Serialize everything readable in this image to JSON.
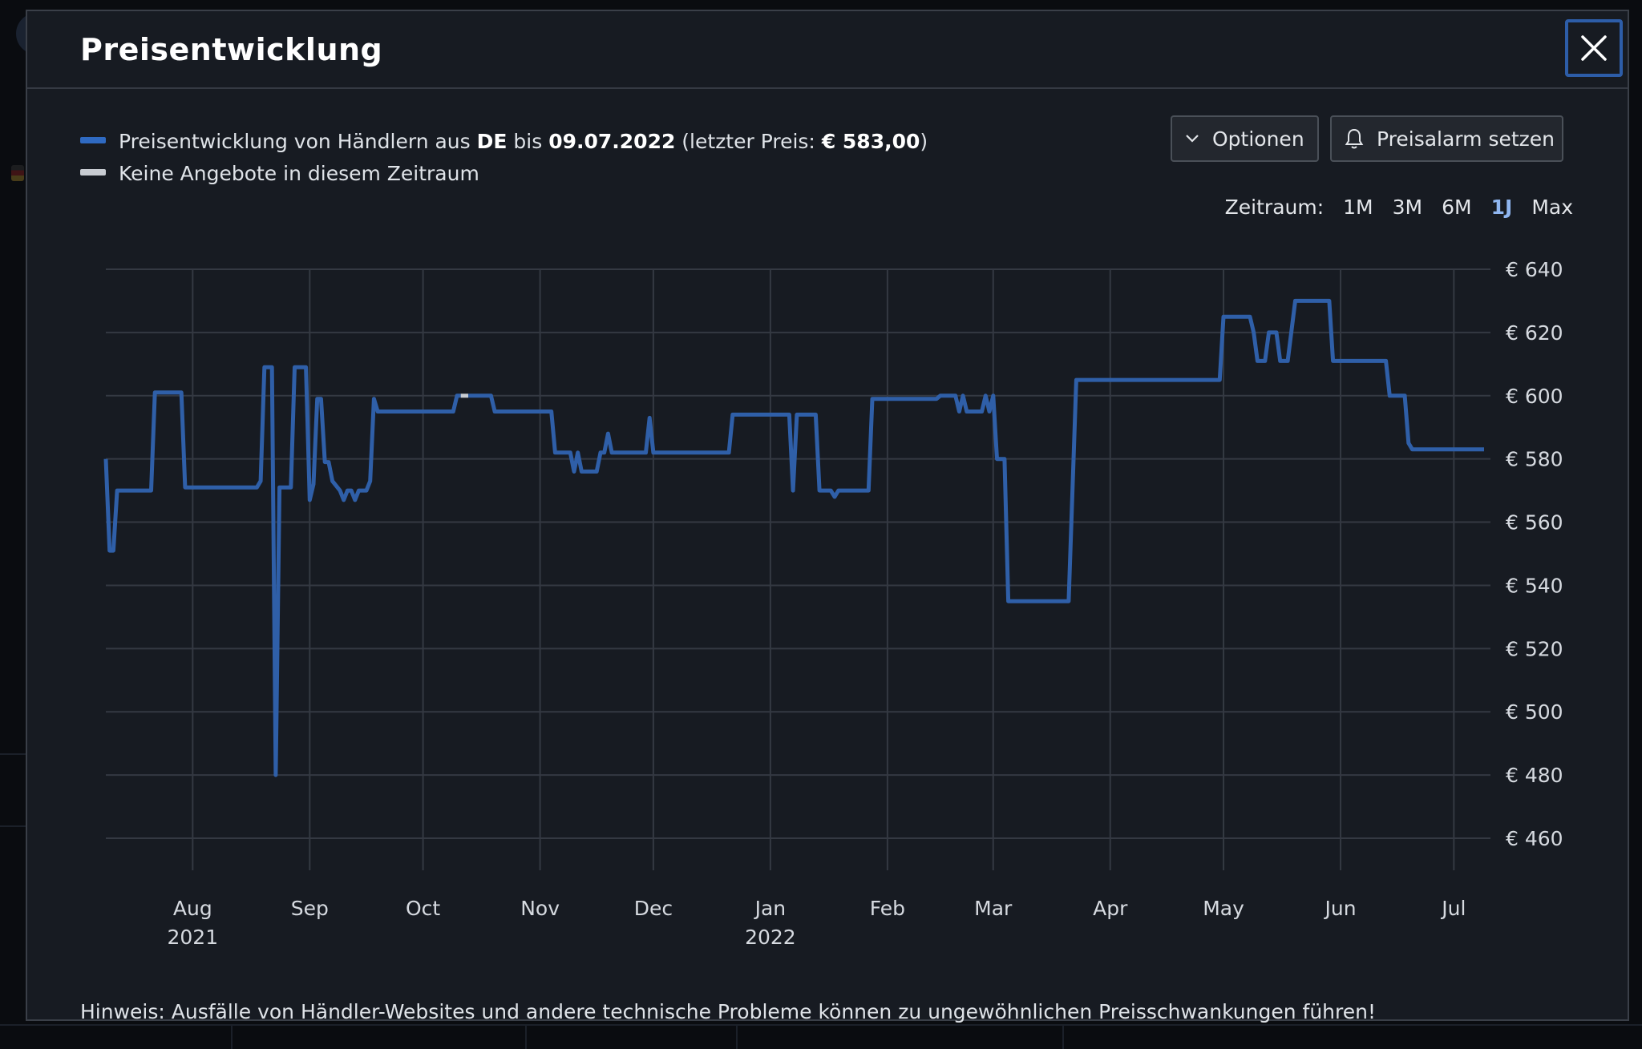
{
  "modal": {
    "title": "Preisentwicklung",
    "close_icon": "close-icon"
  },
  "legend": {
    "line1": {
      "prefix": "Preisentwicklung von Händlern aus ",
      "country": "DE",
      "mid": " bis ",
      "date": "09.07.2022",
      "price_prefix": " (letzter Preis: ",
      "price": "€ 583,00",
      "suffix": ")"
    },
    "line2": "Keine Angebote in diesem Zeitraum"
  },
  "buttons": {
    "optionen": "Optionen",
    "optionen_icon": "chevron-down-icon",
    "preisalarm": "Preisalarm setzen",
    "preisalarm_icon": "bell-icon"
  },
  "zeitraum": {
    "label": "Zeitraum:",
    "options": [
      "1M",
      "3M",
      "6M",
      "1J",
      "Max"
    ],
    "active": "1J"
  },
  "hint": "Hinweis: Ausfälle von Händler-Websites und andere technische Probleme können zu ungewöhnlichen Preisschwankungen führen!",
  "colors": {
    "series": "#2f5fa8",
    "no_offers": "#c8ccd2",
    "accent": "#2d5da8",
    "background": "#171b22"
  },
  "chart_data": {
    "type": "line",
    "ylim": [
      460,
      640
    ],
    "yticks": [
      640,
      620,
      600,
      580,
      560,
      540,
      520,
      500,
      480,
      460
    ],
    "ytick_labels": [
      "€ 640",
      "€ 620",
      "€ 600",
      "€ 580",
      "€ 560",
      "€ 540",
      "€ 520",
      "€ 500",
      "€ 480",
      "€ 460"
    ],
    "x_range": [
      "2021-07-09",
      "2022-07-09"
    ],
    "xticks": [
      {
        "date": "2021-08-01",
        "label": "Aug",
        "sub": "2021"
      },
      {
        "date": "2021-09-01",
        "label": "Sep",
        "sub": ""
      },
      {
        "date": "2021-10-01",
        "label": "Oct",
        "sub": ""
      },
      {
        "date": "2021-11-01",
        "label": "Nov",
        "sub": ""
      },
      {
        "date": "2021-12-01",
        "label": "Dec",
        "sub": ""
      },
      {
        "date": "2022-01-01",
        "label": "Jan",
        "sub": "2022"
      },
      {
        "date": "2022-02-01",
        "label": "Feb",
        "sub": ""
      },
      {
        "date": "2022-03-01",
        "label": "Mar",
        "sub": ""
      },
      {
        "date": "2022-04-01",
        "label": "Apr",
        "sub": ""
      },
      {
        "date": "2022-05-01",
        "label": "May",
        "sub": ""
      },
      {
        "date": "2022-06-01",
        "label": "Jun",
        "sub": ""
      },
      {
        "date": "2022-07-01",
        "label": "Jul",
        "sub": ""
      }
    ],
    "grid": true,
    "series": [
      {
        "points": [
          [
            "2021-07-09",
            580
          ],
          [
            "2021-07-10",
            551
          ],
          [
            "2021-07-11",
            551
          ],
          [
            "2021-07-12",
            570
          ],
          [
            "2021-07-21",
            570
          ],
          [
            "2021-07-22",
            601
          ],
          [
            "2021-07-29",
            601
          ],
          [
            "2021-07-30",
            571
          ],
          [
            "2021-08-18",
            571
          ],
          [
            "2021-08-19",
            573
          ],
          [
            "2021-08-20",
            609
          ],
          [
            "2021-08-22",
            609
          ],
          [
            "2021-08-23",
            480
          ],
          [
            "2021-08-24",
            571
          ],
          [
            "2021-08-27",
            571
          ],
          [
            "2021-08-28",
            609
          ],
          [
            "2021-08-31",
            609
          ],
          [
            "2021-09-01",
            567
          ],
          [
            "2021-09-02",
            572
          ],
          [
            "2021-09-03",
            599
          ],
          [
            "2021-09-04",
            599
          ],
          [
            "2021-09-05",
            579
          ],
          [
            "2021-09-06",
            579
          ],
          [
            "2021-09-07",
            573
          ],
          [
            "2021-09-09",
            570
          ],
          [
            "2021-09-10",
            567
          ],
          [
            "2021-09-11",
            570
          ],
          [
            "2021-09-12",
            570
          ],
          [
            "2021-09-13",
            567
          ],
          [
            "2021-09-14",
            570
          ],
          [
            "2021-09-16",
            570
          ],
          [
            "2021-09-17",
            573
          ],
          [
            "2021-09-18",
            599
          ],
          [
            "2021-09-19",
            595
          ],
          [
            "2021-10-09",
            595
          ],
          [
            "2021-10-10",
            600
          ],
          [
            "2021-10-11",
            600
          ]
        ]
      },
      {
        "points": [
          [
            "2021-10-11",
            600
          ],
          [
            "2021-10-13",
            600
          ]
        ]
      },
      {
        "points": [
          [
            "2021-10-13",
            600
          ],
          [
            "2021-10-19",
            600
          ],
          [
            "2021-10-20",
            595
          ],
          [
            "2021-11-04",
            595
          ],
          [
            "2021-11-05",
            582
          ],
          [
            "2021-11-09",
            582
          ],
          [
            "2021-11-10",
            576
          ],
          [
            "2021-11-11",
            582
          ],
          [
            "2021-11-12",
            576
          ],
          [
            "2021-11-16",
            576
          ],
          [
            "2021-11-17",
            582
          ],
          [
            "2021-11-18",
            582
          ],
          [
            "2021-11-19",
            588
          ],
          [
            "2021-11-20",
            582
          ],
          [
            "2021-11-29",
            582
          ],
          [
            "2021-11-30",
            593
          ],
          [
            "2021-12-01",
            582
          ],
          [
            "2021-12-21",
            582
          ],
          [
            "2021-12-22",
            594
          ],
          [
            "2022-01-06",
            594
          ],
          [
            "2022-01-07",
            570
          ],
          [
            "2022-01-08",
            594
          ],
          [
            "2022-01-13",
            594
          ],
          [
            "2022-01-14",
            570
          ],
          [
            "2022-01-17",
            570
          ],
          [
            "2022-01-18",
            568
          ],
          [
            "2022-01-19",
            570
          ],
          [
            "2022-01-27",
            570
          ],
          [
            "2022-01-28",
            599
          ],
          [
            "2022-02-14",
            599
          ],
          [
            "2022-02-15",
            600
          ],
          [
            "2022-02-19",
            600
          ],
          [
            "2022-02-20",
            595
          ],
          [
            "2022-02-21",
            600
          ],
          [
            "2022-02-22",
            595
          ],
          [
            "2022-02-26",
            595
          ],
          [
            "2022-02-27",
            600
          ],
          [
            "2022-02-28",
            595
          ],
          [
            "2022-03-01",
            600
          ],
          [
            "2022-03-02",
            580
          ],
          [
            "2022-03-04",
            580
          ],
          [
            "2022-03-05",
            535
          ],
          [
            "2022-03-21",
            535
          ],
          [
            "2022-03-23",
            605
          ],
          [
            "2022-04-30",
            605
          ],
          [
            "2022-05-01",
            625
          ],
          [
            "2022-05-08",
            625
          ],
          [
            "2022-05-09",
            620
          ],
          [
            "2022-05-10",
            611
          ],
          [
            "2022-05-12",
            611
          ],
          [
            "2022-05-13",
            620
          ],
          [
            "2022-05-15",
            620
          ],
          [
            "2022-05-16",
            611
          ],
          [
            "2022-05-18",
            611
          ],
          [
            "2022-05-20",
            630
          ],
          [
            "2022-05-29",
            630
          ],
          [
            "2022-05-30",
            611
          ],
          [
            "2022-06-13",
            611
          ],
          [
            "2022-06-14",
            600
          ],
          [
            "2022-06-18",
            600
          ],
          [
            "2022-06-19",
            585
          ],
          [
            "2022-06-20",
            583
          ],
          [
            "2022-07-09",
            583
          ]
        ]
      }
    ]
  }
}
